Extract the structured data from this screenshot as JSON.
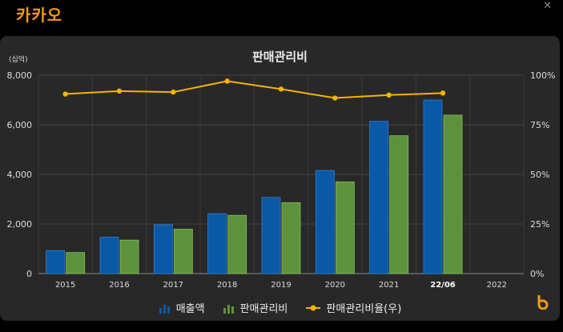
{
  "window": {
    "title": "카카오",
    "close_icon": "close-icon"
  },
  "chart": {
    "title": "판매관리비",
    "unit": "(십억)",
    "brand_icon": "brand-logo-icon"
  },
  "colors": {
    "sales": "#0a59a6",
    "sga": "#5e913e",
    "ratio": "#f5b400"
  },
  "chart_data": {
    "type": "bar",
    "title": "판매관리비",
    "categories": [
      "2015",
      "2016",
      "2017",
      "2018",
      "2019",
      "2020",
      "2021",
      "22/06",
      "2022"
    ],
    "highlight_category": "22/06",
    "y_left": {
      "label": "(십억)",
      "ylim": [
        0,
        8000
      ],
      "ticks": [
        "0",
        "2,000",
        "4,000",
        "6,000",
        "8,000"
      ],
      "tick_values": [
        0,
        2000,
        4000,
        6000,
        8000
      ]
    },
    "y_right": {
      "ylim": [
        0,
        100
      ],
      "ticks": [
        "0%",
        "25%",
        "50%",
        "75%",
        "100%"
      ],
      "tick_values": [
        0,
        25,
        50,
        75,
        100
      ]
    },
    "grid": true,
    "legend_position": "bottom",
    "series": [
      {
        "name": "매출액",
        "type": "bar",
        "axis": "left",
        "values": [
          930,
          1470,
          1970,
          2420,
          3070,
          4160,
          6140,
          7000,
          null
        ]
      },
      {
        "name": "판매관리비",
        "type": "bar",
        "axis": "left",
        "values": [
          850,
          1350,
          1790,
          2350,
          2860,
          3700,
          5560,
          6390,
          null
        ]
      },
      {
        "name": "판매관리비율(우)",
        "type": "line",
        "axis": "right",
        "values": [
          90.5,
          92,
          91.5,
          97,
          93,
          88.5,
          90,
          91,
          null
        ]
      }
    ]
  }
}
